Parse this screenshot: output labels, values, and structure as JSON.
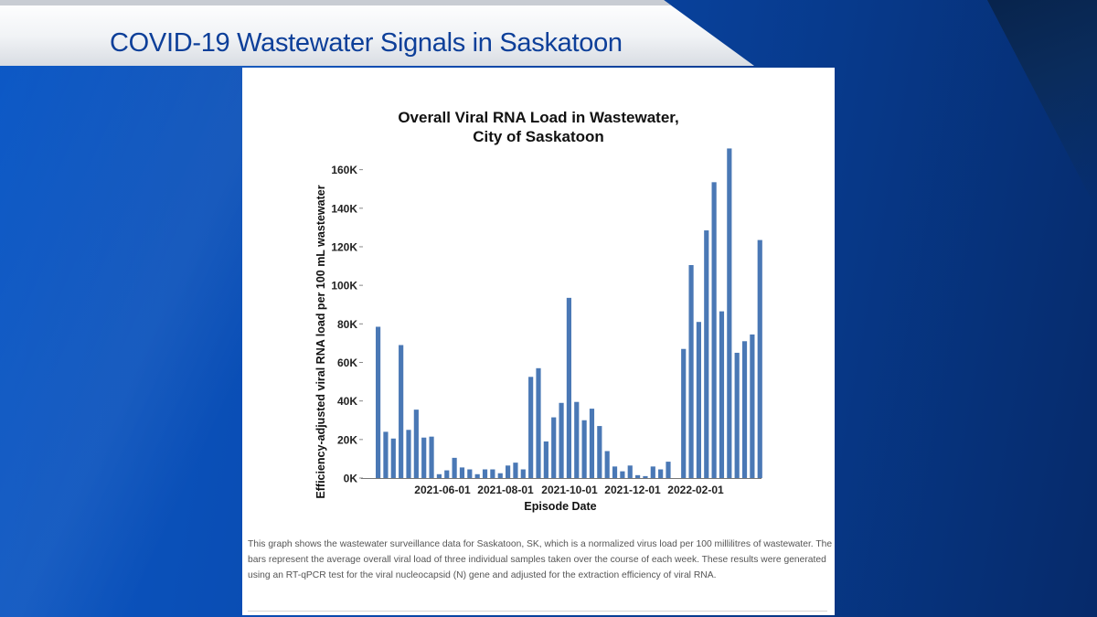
{
  "header": {
    "title": "COVID-19 Wastewater Signals in Saskatoon"
  },
  "caption": "This graph shows the wastewater surveillance data for Saskatoon, SK, which is a normalized virus load per 100 millilitres of wastewater. The bars represent the average overall viral load of three individual samples taken over the course of each week. These results were generated using an RT-qPCR test for the viral nucleocapsid (N) gene and adjusted for the extraction efficiency of viral RNA.",
  "colors": {
    "bar": "#4a78b5",
    "title_text": "#0d3f99"
  },
  "chart_data": {
    "type": "bar",
    "title_line1": "Overall Viral RNA Load in Wastewater,",
    "title_line2": "City of Saskatoon",
    "xlabel": "Episode Date",
    "ylabel": "Efficiency-adjusted viral RNA load per 100 mL wastewater",
    "ylim": [
      0,
      175000
    ],
    "yticks": [
      0,
      20000,
      40000,
      60000,
      80000,
      100000,
      120000,
      140000,
      160000
    ],
    "ytick_labels": [
      "0K",
      "20K",
      "40K",
      "60K",
      "80K",
      "100K",
      "120K",
      "140K",
      "160K"
    ],
    "xtick_labels": [
      "2021-06-01",
      "2021-08-01",
      "2021-10-01",
      "2021-12-01",
      "2022-02-01"
    ],
    "values": [
      78500,
      24000,
      20500,
      69000,
      25000,
      35500,
      21000,
      21500,
      2000,
      4000,
      10500,
      5500,
      4500,
      2000,
      4500,
      4500,
      2500,
      6500,
      8000,
      4500,
      52500,
      57000,
      19000,
      31500,
      39000,
      93500,
      39500,
      30000,
      36000,
      27000,
      14000,
      6000,
      3500,
      6500,
      1500,
      1000,
      6000,
      4500,
      8500,
      0,
      67000,
      110500,
      81000,
      128500,
      153500,
      86500,
      171000,
      65000,
      71000,
      74500,
      123500
    ]
  }
}
